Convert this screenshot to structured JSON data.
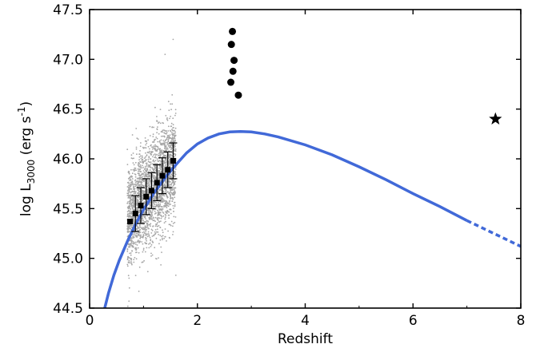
{
  "chart_data": {
    "type": "scatter",
    "xlabel": "Redshift",
    "ylabel": {
      "prefix": "log L",
      "subscript": "3000",
      "unit_open": " (erg s",
      "superscript": "-1",
      "unit_close": ")"
    },
    "xlim": [
      0,
      8
    ],
    "ylim": [
      44.5,
      47.5
    ],
    "x_ticks": [
      0,
      2,
      4,
      6,
      8
    ],
    "y_ticks": [
      44.5,
      45.0,
      45.5,
      46.0,
      46.5,
      47.0,
      47.5
    ],
    "x_tick_labels": [
      "0",
      "2",
      "4",
      "6",
      "8"
    ],
    "y_tick_labels": [
      "44.5",
      "45.0",
      "45.5",
      "46.0",
      "46.5",
      "47.0",
      "47.5"
    ],
    "grid": false,
    "colors": {
      "background_points": "#a6a6a6",
      "curve": "#4169d8",
      "markers": "#000000"
    },
    "background_sample": {
      "x_range": [
        0.7,
        1.6
      ],
      "y_center_at_x_min": 45.4,
      "y_center_at_x_max": 45.95,
      "y_spread": 0.3,
      "count": 2600,
      "outliers": [
        [
          1.55,
          47.2
        ],
        [
          1.6,
          44.83
        ],
        [
          0.78,
          44.95
        ],
        [
          1.4,
          47.05
        ]
      ]
    },
    "binned_points": [
      {
        "x": 0.75,
        "y": 45.37,
        "err": 0.0
      },
      {
        "x": 0.85,
        "y": 45.45,
        "err": 0.18
      },
      {
        "x": 0.95,
        "y": 45.53,
        "err": 0.18
      },
      {
        "x": 1.05,
        "y": 45.62,
        "err": 0.18
      },
      {
        "x": 1.15,
        "y": 45.68,
        "err": 0.18
      },
      {
        "x": 1.25,
        "y": 45.76,
        "err": 0.18
      },
      {
        "x": 1.35,
        "y": 45.83,
        "err": 0.18
      },
      {
        "x": 1.45,
        "y": 45.89,
        "err": 0.18
      },
      {
        "x": 1.55,
        "y": 45.98,
        "err": 0.18
      }
    ],
    "high_z_circles": [
      {
        "x": 2.65,
        "y": 47.28
      },
      {
        "x": 2.63,
        "y": 47.15
      },
      {
        "x": 2.68,
        "y": 46.99
      },
      {
        "x": 2.66,
        "y": 46.88
      },
      {
        "x": 2.62,
        "y": 46.77
      },
      {
        "x": 2.76,
        "y": 46.64
      }
    ],
    "star": {
      "x": 7.53,
      "y": 46.4
    },
    "curve": {
      "solid_segment": [
        [
          0.28,
          44.5
        ],
        [
          0.35,
          44.65
        ],
        [
          0.45,
          44.83
        ],
        [
          0.55,
          44.98
        ],
        [
          0.7,
          45.17
        ],
        [
          0.85,
          45.34
        ],
        [
          1.0,
          45.49
        ],
        [
          1.2,
          45.66
        ],
        [
          1.4,
          45.81
        ],
        [
          1.6,
          45.94
        ],
        [
          1.8,
          46.06
        ],
        [
          2.0,
          46.15
        ],
        [
          2.2,
          46.21
        ],
        [
          2.4,
          46.25
        ],
        [
          2.6,
          46.27
        ],
        [
          2.8,
          46.275
        ],
        [
          3.0,
          46.27
        ],
        [
          3.25,
          46.25
        ],
        [
          3.5,
          46.22
        ],
        [
          4.0,
          46.14
        ],
        [
          4.5,
          46.04
        ],
        [
          5.0,
          45.92
        ],
        [
          5.5,
          45.79
        ],
        [
          6.0,
          45.65
        ],
        [
          6.5,
          45.52
        ],
        [
          7.0,
          45.38
        ]
      ],
      "dashed_segment": [
        [
          7.0,
          45.38
        ],
        [
          7.5,
          45.25
        ],
        [
          8.0,
          45.12
        ]
      ]
    }
  }
}
